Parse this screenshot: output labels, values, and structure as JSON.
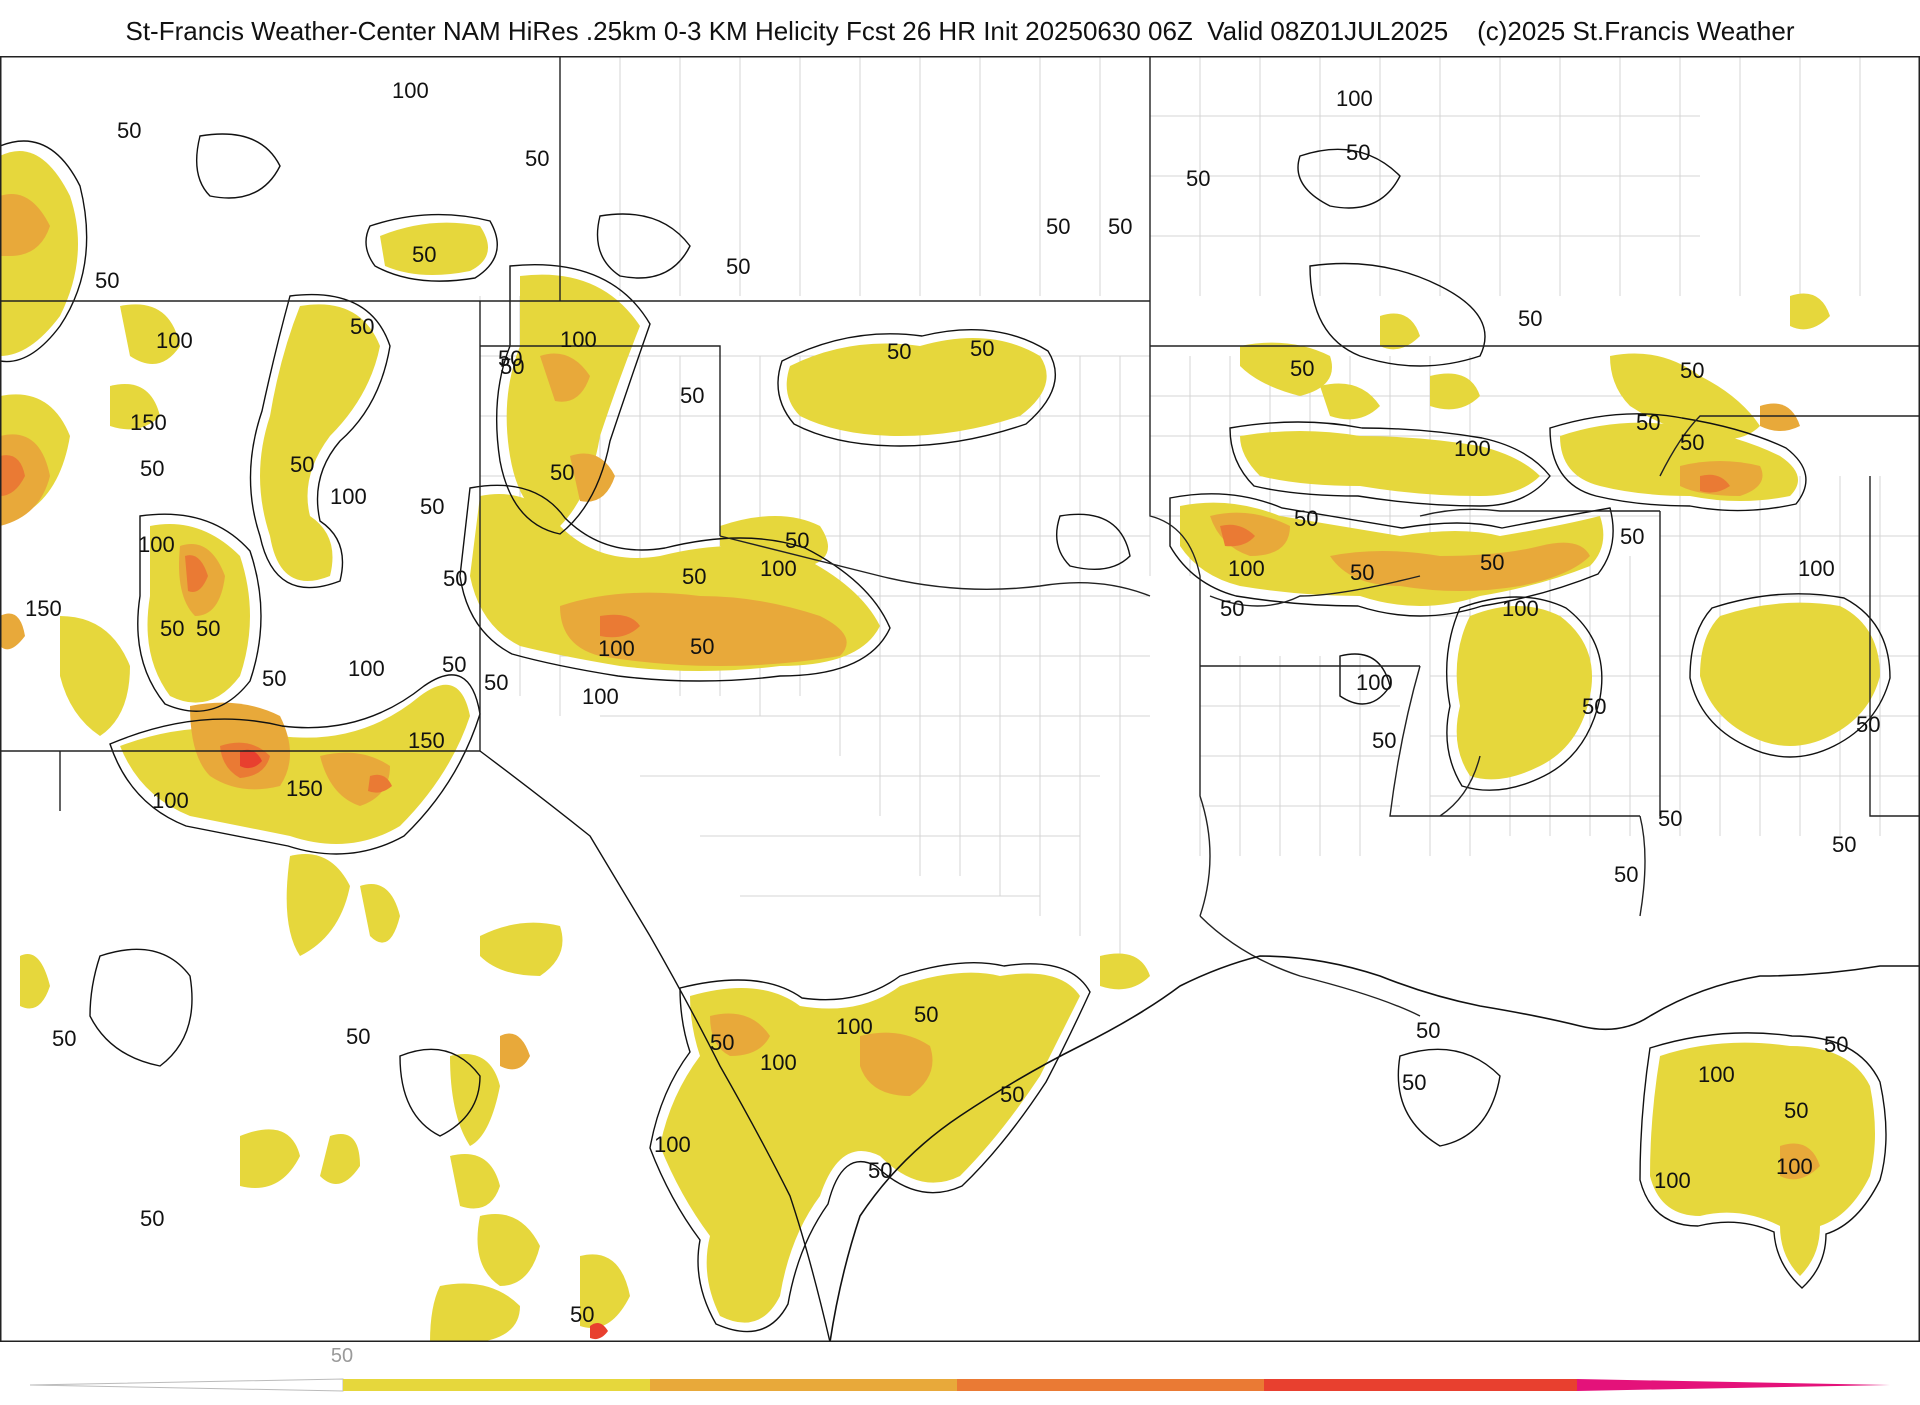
{
  "header": {
    "title": "St-Francis Weather-Center NAM HiRes .25km 0-3 KM Helicity Fcst 26 HR Init 20250630 06Z  Valid 08Z01JUL2025    (c)2025 St.Francis Weather"
  },
  "map": {
    "contour_labels": [
      {
        "id": "c1",
        "text": "100"
      },
      {
        "id": "c2",
        "text": "50"
      },
      {
        "id": "c3",
        "text": "50"
      },
      {
        "id": "c4",
        "text": "50"
      },
      {
        "id": "c5",
        "text": "50"
      },
      {
        "id": "c6",
        "text": "50"
      },
      {
        "id": "c7",
        "text": "100"
      },
      {
        "id": "c8",
        "text": "50"
      },
      {
        "id": "c9",
        "text": "150"
      },
      {
        "id": "c10",
        "text": "50"
      },
      {
        "id": "c11",
        "text": "100"
      },
      {
        "id": "c12",
        "text": "50"
      },
      {
        "id": "c13",
        "text": "50"
      },
      {
        "id": "c14",
        "text": "100"
      },
      {
        "id": "c15",
        "text": "150"
      },
      {
        "id": "c16",
        "text": "50"
      },
      {
        "id": "c17",
        "text": "50"
      },
      {
        "id": "c18",
        "text": "50"
      },
      {
        "id": "c19",
        "text": "100"
      },
      {
        "id": "c20",
        "text": "150"
      },
      {
        "id": "c21",
        "text": "100"
      },
      {
        "id": "c22",
        "text": "150"
      },
      {
        "id": "c23",
        "text": "50"
      },
      {
        "id": "c24",
        "text": "100"
      },
      {
        "id": "c25",
        "text": "50"
      },
      {
        "id": "c26",
        "text": "50"
      },
      {
        "id": "c27",
        "text": "50"
      },
      {
        "id": "c28",
        "text": "50"
      },
      {
        "id": "c29",
        "text": "100"
      },
      {
        "id": "c30",
        "text": "50"
      },
      {
        "id": "c31",
        "text": "50"
      },
      {
        "id": "c32",
        "text": "100"
      },
      {
        "id": "c33",
        "text": "50"
      },
      {
        "id": "c34",
        "text": "50"
      },
      {
        "id": "c35",
        "text": "50"
      },
      {
        "id": "c36",
        "text": "100"
      },
      {
        "id": "c37",
        "text": "50"
      },
      {
        "id": "c38",
        "text": "50"
      },
      {
        "id": "c39",
        "text": "50"
      },
      {
        "id": "c40",
        "text": "50"
      },
      {
        "id": "c41",
        "text": "50"
      },
      {
        "id": "c42",
        "text": "100"
      },
      {
        "id": "c43",
        "text": "50"
      },
      {
        "id": "c44",
        "text": "50"
      },
      {
        "id": "c45",
        "text": "50"
      },
      {
        "id": "c46",
        "text": "100"
      },
      {
        "id": "c47",
        "text": "50"
      },
      {
        "id": "c48",
        "text": "50"
      },
      {
        "id": "c49",
        "text": "50"
      },
      {
        "id": "c50",
        "text": "50"
      },
      {
        "id": "c51",
        "text": "50"
      },
      {
        "id": "c52",
        "text": "50"
      },
      {
        "id": "c53",
        "text": "100"
      },
      {
        "id": "c54",
        "text": "50"
      },
      {
        "id": "c55",
        "text": "100"
      },
      {
        "id": "c56",
        "text": "100"
      },
      {
        "id": "c57",
        "text": "50"
      },
      {
        "id": "c58",
        "text": "100"
      },
      {
        "id": "c59",
        "text": "50"
      },
      {
        "id": "c60",
        "text": "50"
      },
      {
        "id": "c61",
        "text": "50"
      },
      {
        "id": "c62",
        "text": "50"
      },
      {
        "id": "c63",
        "text": "50"
      },
      {
        "id": "c64",
        "text": "50"
      },
      {
        "id": "c65",
        "text": "50"
      },
      {
        "id": "c66",
        "text": "100"
      },
      {
        "id": "c67",
        "text": "50"
      },
      {
        "id": "c68",
        "text": "100"
      },
      {
        "id": "c69",
        "text": "100"
      },
      {
        "id": "c70",
        "text": "50"
      },
      {
        "id": "c71",
        "text": "50"
      },
      {
        "id": "c72",
        "text": "100"
      },
      {
        "id": "c73",
        "text": "100"
      },
      {
        "id": "c74",
        "text": "100"
      },
      {
        "id": "c75",
        "text": "50"
      },
      {
        "id": "c76",
        "text": "50"
      },
      {
        "id": "c77",
        "text": "50"
      },
      {
        "id": "c78",
        "text": "50"
      },
      {
        "id": "c79",
        "text": "50"
      },
      {
        "id": "c80",
        "text": "50"
      },
      {
        "id": "c81",
        "text": "50"
      },
      {
        "id": "c82",
        "text": "50"
      }
    ],
    "colors": {
      "level_50": "#e6d73c",
      "level_100": "#e8a93a",
      "level_150": "#ea7a34",
      "level_200": "#e8402f",
      "level_250": "#e4127a",
      "border": "#222222",
      "county": "#cfcfcf",
      "contour": "#111111"
    }
  },
  "colorbar": {
    "tick_label": "50",
    "colors": [
      "#e6d73c",
      "#e8a93a",
      "#ea7a34",
      "#e8402f",
      "#e4127a"
    ]
  }
}
